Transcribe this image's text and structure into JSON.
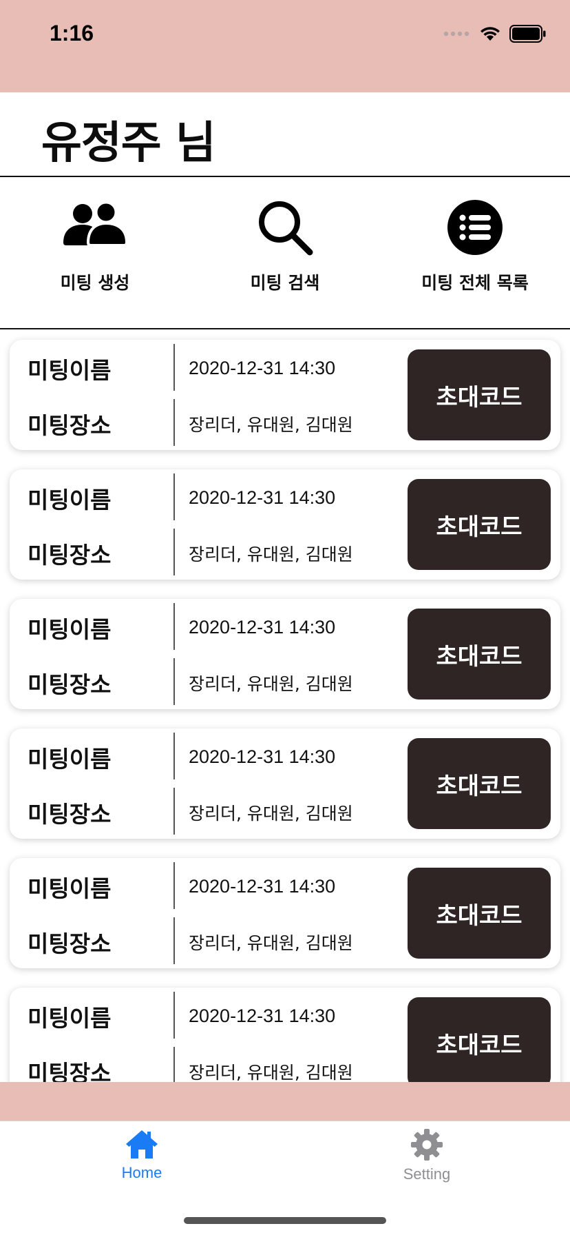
{
  "status_bar": {
    "time": "1:16"
  },
  "header": {
    "greeting": "유정주 님"
  },
  "actions": [
    {
      "label": "미팅 생성",
      "icon": "people-icon"
    },
    {
      "label": "미팅 검색",
      "icon": "search-icon"
    },
    {
      "label": "미팅 전체 목록",
      "icon": "list-icon"
    }
  ],
  "meetings": [
    {
      "name_label": "미팅이름",
      "place_label": "미팅장소",
      "datetime": "2020-12-31 14:30",
      "members": "장리더, 유대원, 김대원",
      "invite_label": "초대코드"
    },
    {
      "name_label": "미팅이름",
      "place_label": "미팅장소",
      "datetime": "2020-12-31 14:30",
      "members": "장리더, 유대원, 김대원",
      "invite_label": "초대코드"
    },
    {
      "name_label": "미팅이름",
      "place_label": "미팅장소",
      "datetime": "2020-12-31 14:30",
      "members": "장리더, 유대원, 김대원",
      "invite_label": "초대코드"
    },
    {
      "name_label": "미팅이름",
      "place_label": "미팅장소",
      "datetime": "2020-12-31 14:30",
      "members": "장리더, 유대원, 김대원",
      "invite_label": "초대코드"
    },
    {
      "name_label": "미팅이름",
      "place_label": "미팅장소",
      "datetime": "2020-12-31 14:30",
      "members": "장리더, 유대원, 김대원",
      "invite_label": "초대코드"
    },
    {
      "name_label": "미팅이름",
      "place_label": "미팅장소",
      "datetime": "2020-12-31 14:30",
      "members": "장리더, 유대원, 김대원",
      "invite_label": "초대코드"
    }
  ],
  "tab_bar": {
    "home_label": "Home",
    "setting_label": "Setting",
    "active_color": "#1a7cf5",
    "inactive_color": "#8e8e93"
  },
  "colors": {
    "accent_pink": "#e8bdb5",
    "invite_button": "#2e2524"
  }
}
